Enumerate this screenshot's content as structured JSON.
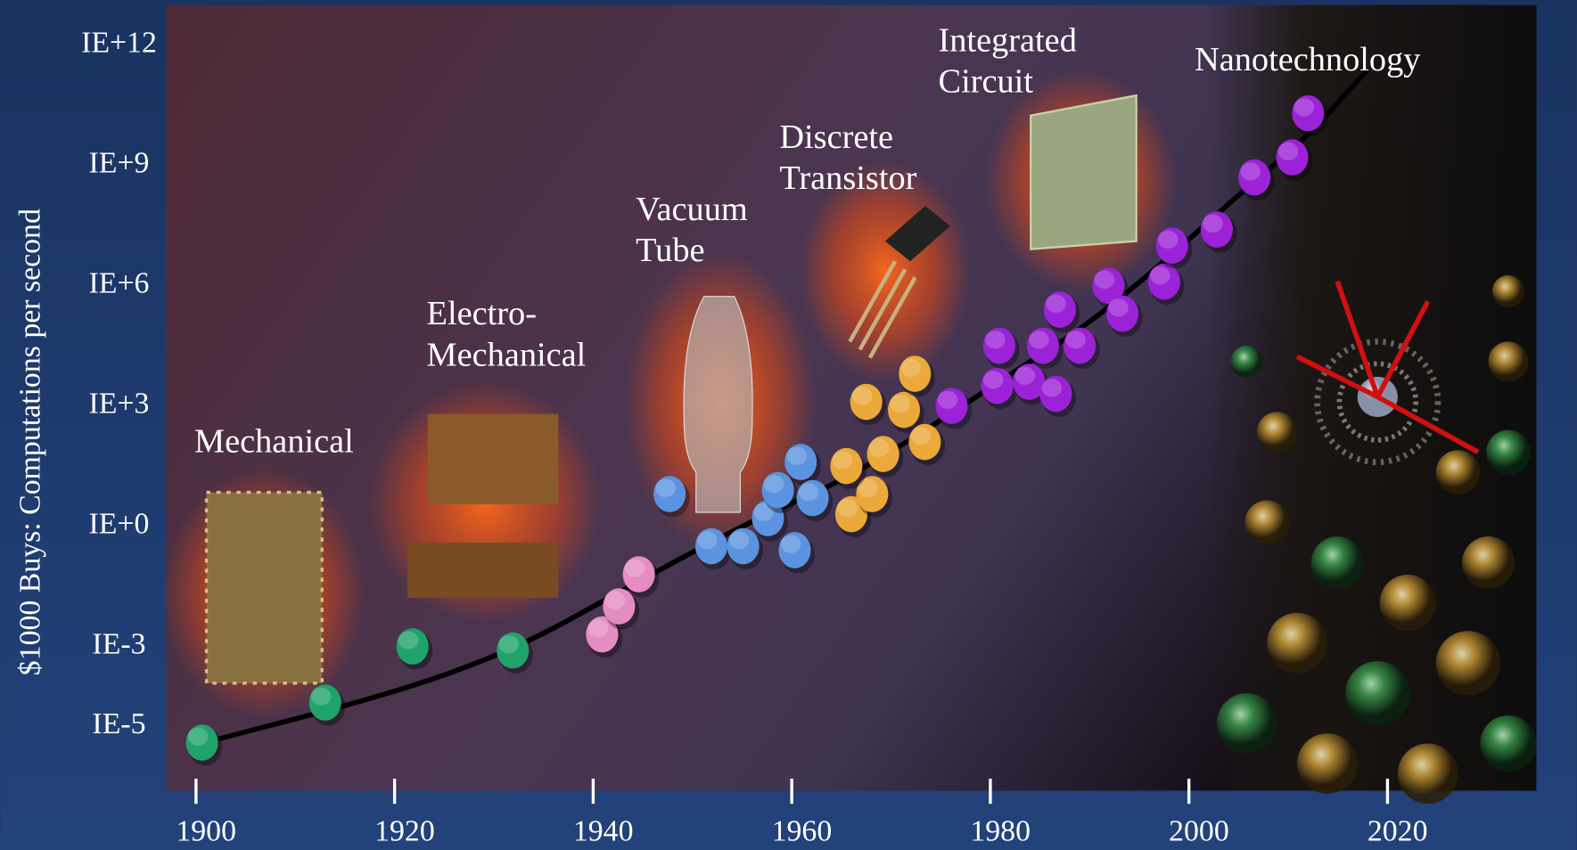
{
  "chart_data": {
    "type": "scatter",
    "y_axis_label": "$1000 Buys: Computations per second",
    "xlim": [
      1897,
      2035
    ],
    "ylim": [
      -6.6,
      13
    ],
    "xticks": [
      1900,
      1920,
      1940,
      1960,
      1980,
      2000,
      2020
    ],
    "yticks": [
      {
        "value": 12,
        "label": "IE+12"
      },
      {
        "value": 9,
        "label": "IE+9"
      },
      {
        "value": 6,
        "label": "IE+6"
      },
      {
        "value": 3,
        "label": "IE+3"
      },
      {
        "value": 0,
        "label": "IE+0"
      },
      {
        "value": -3,
        "label": "IE-3"
      },
      {
        "value": -5,
        "label": "IE-5"
      }
    ],
    "annotations": [
      {
        "lines": [
          "Mechanical"
        ]
      },
      {
        "lines": [
          "Electro-",
          "Mechanical"
        ]
      },
      {
        "lines": [
          "Vacuum",
          "Tube"
        ]
      },
      {
        "lines": [
          "Discrete",
          "Transistor"
        ]
      },
      {
        "lines": [
          "Integrated",
          "Circuit"
        ]
      },
      {
        "lines": [
          "Nanotechnology"
        ]
      }
    ],
    "series": [
      {
        "color": "#1fa36a",
        "x": [
          1900.6,
          1913.0,
          1921.8,
          1931.9
        ],
        "values": [
          -5.4,
          -4.4,
          -3.0,
          -3.1
        ]
      },
      {
        "color": "#e58cc4",
        "x": [
          1940.9,
          1942.6,
          1944.6
        ],
        "values": [
          -2.7,
          -2.0,
          -1.2
        ]
      },
      {
        "color": "#5b93e0",
        "x": [
          1947.7,
          1951.9,
          1955.1,
          1957.6,
          1958.6,
          1960.9,
          1962.1,
          1960.3
        ],
        "values": [
          0.8,
          -0.5,
          -0.5,
          0.2,
          0.9,
          1.6,
          0.7,
          -0.6
        ]
      },
      {
        "color": "#eaa93a",
        "x": [
          1966.0,
          1968.1,
          1965.5,
          1969.2,
          1967.5,
          1971.3,
          1973.4,
          1972.4
        ],
        "values": [
          0.3,
          0.8,
          1.5,
          1.8,
          3.1,
          2.9,
          2.1,
          3.8
        ]
      },
      {
        "color": "#9b22d6",
        "x": [
          1976.1,
          1980.7,
          1980.9,
          1983.9,
          1985.3,
          1986.6,
          1987.0,
          1989.0,
          1991.9,
          1993.3,
          1997.5,
          1998.3,
          2002.8,
          2006.6,
          2010.4,
          2012.0
        ],
        "values": [
          3.0,
          3.5,
          4.5,
          3.6,
          4.5,
          3.3,
          5.4,
          4.5,
          6.0,
          5.3,
          6.1,
          7.0,
          7.4,
          8.7,
          9.2,
          10.3
        ]
      }
    ]
  }
}
